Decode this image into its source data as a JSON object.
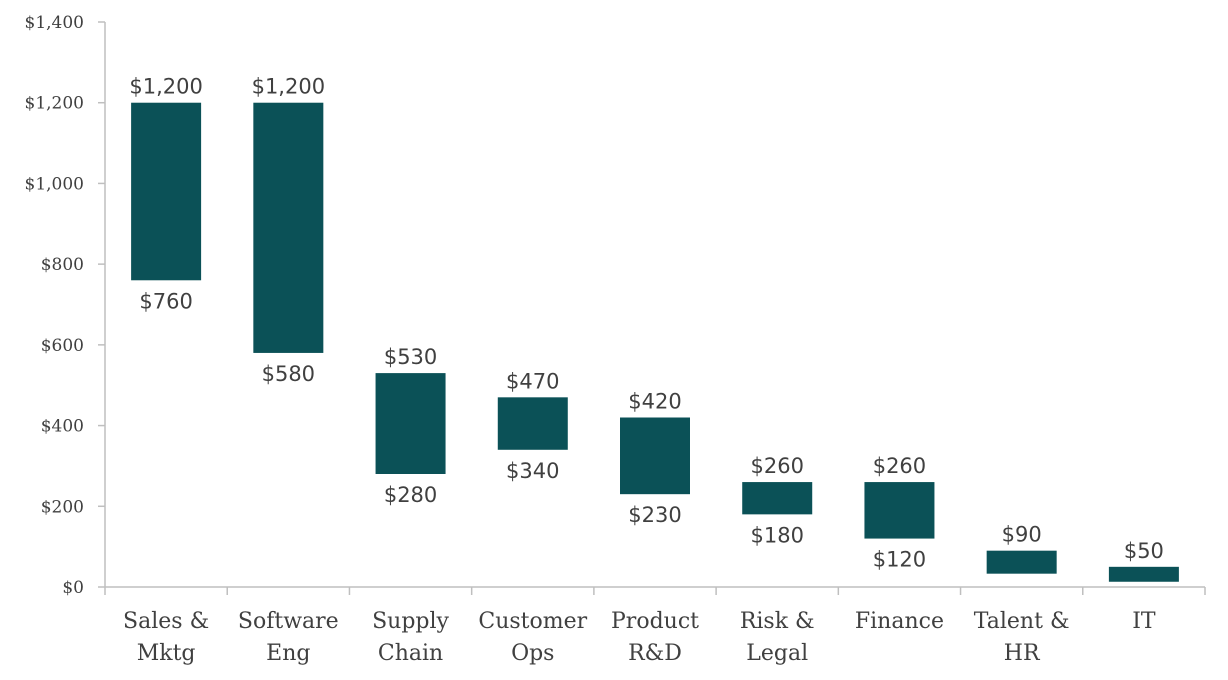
{
  "chart_data": {
    "type": "bar",
    "subtype": "floating-range",
    "categories": [
      [
        "Sales &",
        "Mktg"
      ],
      [
        "Software",
        "Eng"
      ],
      [
        "Supply",
        "Chain"
      ],
      [
        "Customer",
        "Ops"
      ],
      [
        "Product",
        "R&D"
      ],
      [
        "Risk &",
        "Legal"
      ],
      [
        "Finance"
      ],
      [
        "Talent &",
        "HR"
      ],
      [
        "IT"
      ]
    ],
    "high": [
      1200,
      1200,
      530,
      470,
      420,
      260,
      260,
      90,
      50
    ],
    "low": [
      760,
      580,
      280,
      340,
      230,
      180,
      120,
      null,
      null
    ],
    "high_labels": [
      "$1,200",
      "$1,200",
      "$530",
      "$470",
      "$420",
      "$260",
      "$260",
      "$90",
      "$50"
    ],
    "low_labels": [
      "$760",
      "$580",
      "$280",
      "$340",
      "$230",
      "$180",
      "$120",
      "",
      ""
    ],
    "ylim": [
      0,
      1400
    ],
    "yticks": [
      0,
      200,
      400,
      600,
      800,
      1000,
      1200,
      1400
    ],
    "ytick_labels": [
      "$0",
      "$200",
      "$400",
      "$600",
      "$800",
      "$1,000",
      "$1,200",
      "$1,400"
    ],
    "title": "",
    "xlabel": "",
    "ylabel": "",
    "grid": false,
    "bar_color": "#0b5157"
  }
}
